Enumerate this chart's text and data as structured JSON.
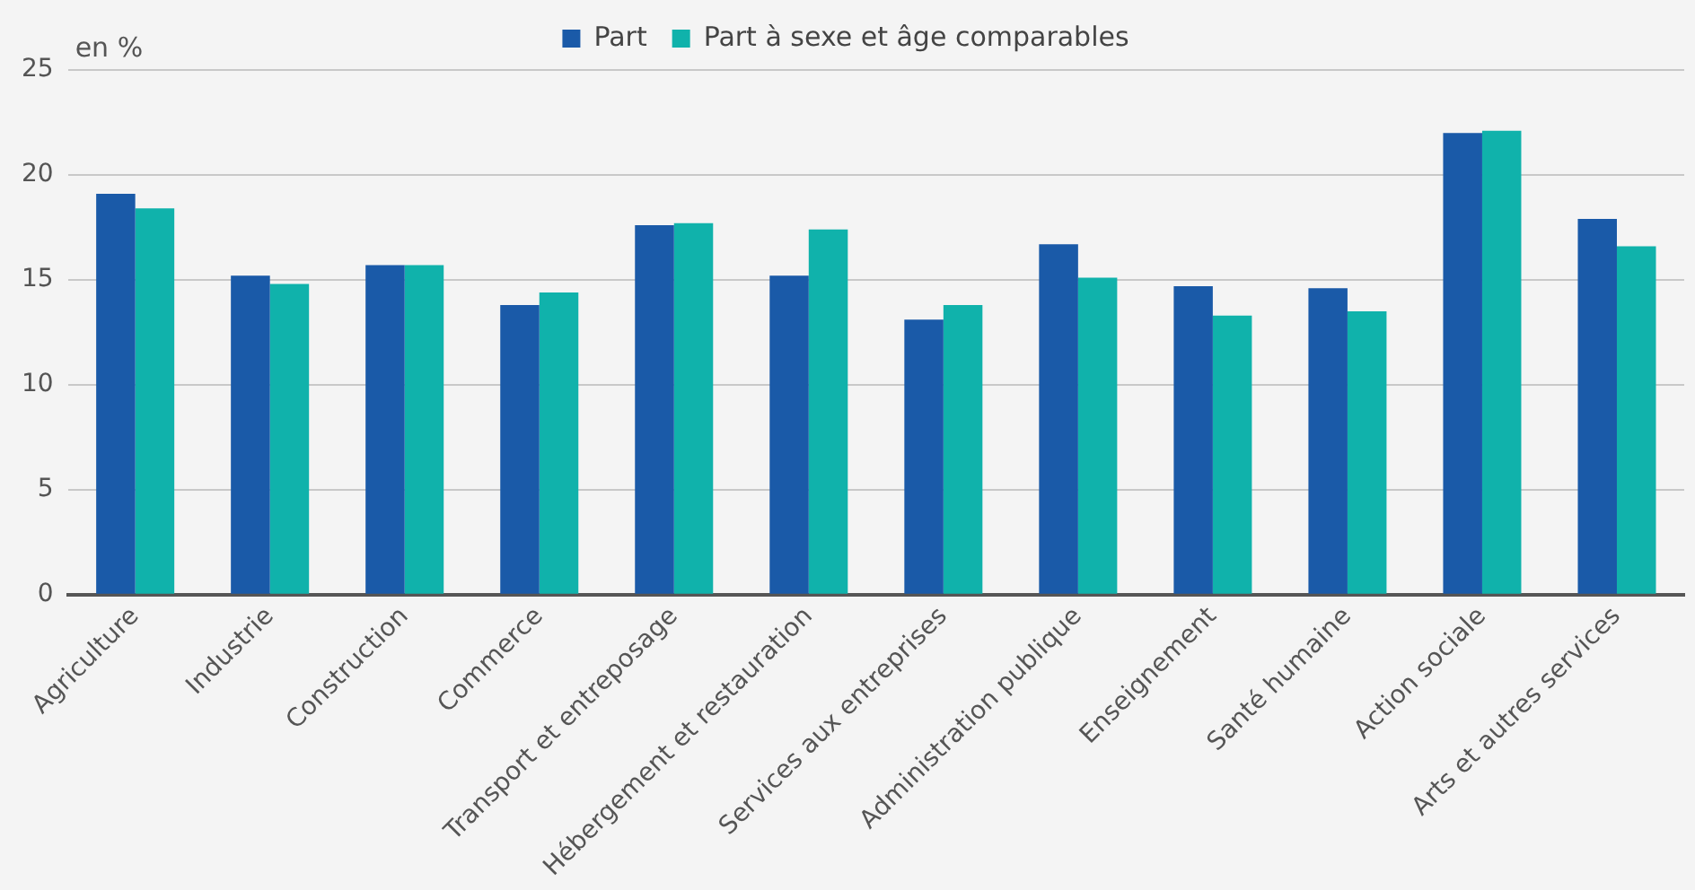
{
  "chart_data": {
    "type": "bar",
    "ylabel": "en %",
    "categories": [
      "Agriculture",
      "Industrie",
      "Construction",
      "Commerce",
      "Transport et entreposage",
      "Hébergement et restauration",
      "Services aux entreprises",
      "Administration publique",
      "Enseignement",
      "Santé humaine",
      "Action sociale",
      "Arts et autres services"
    ],
    "series": [
      {
        "name": "Part",
        "color": "#1a5aa8",
        "values": [
          19.1,
          15.2,
          15.7,
          13.8,
          17.6,
          15.2,
          13.1,
          16.7,
          14.7,
          14.6,
          22.0,
          17.9
        ]
      },
      {
        "name": "Part à sexe et âge comparables",
        "color": "#10b2ab",
        "values": [
          18.4,
          14.8,
          15.7,
          14.4,
          17.7,
          17.4,
          13.8,
          15.1,
          13.3,
          13.5,
          22.1,
          16.6
        ]
      }
    ],
    "ylim": [
      0,
      25
    ],
    "yticks": [
      0,
      5,
      10,
      15,
      20,
      25
    ],
    "grid": "y",
    "legend": "top"
  }
}
